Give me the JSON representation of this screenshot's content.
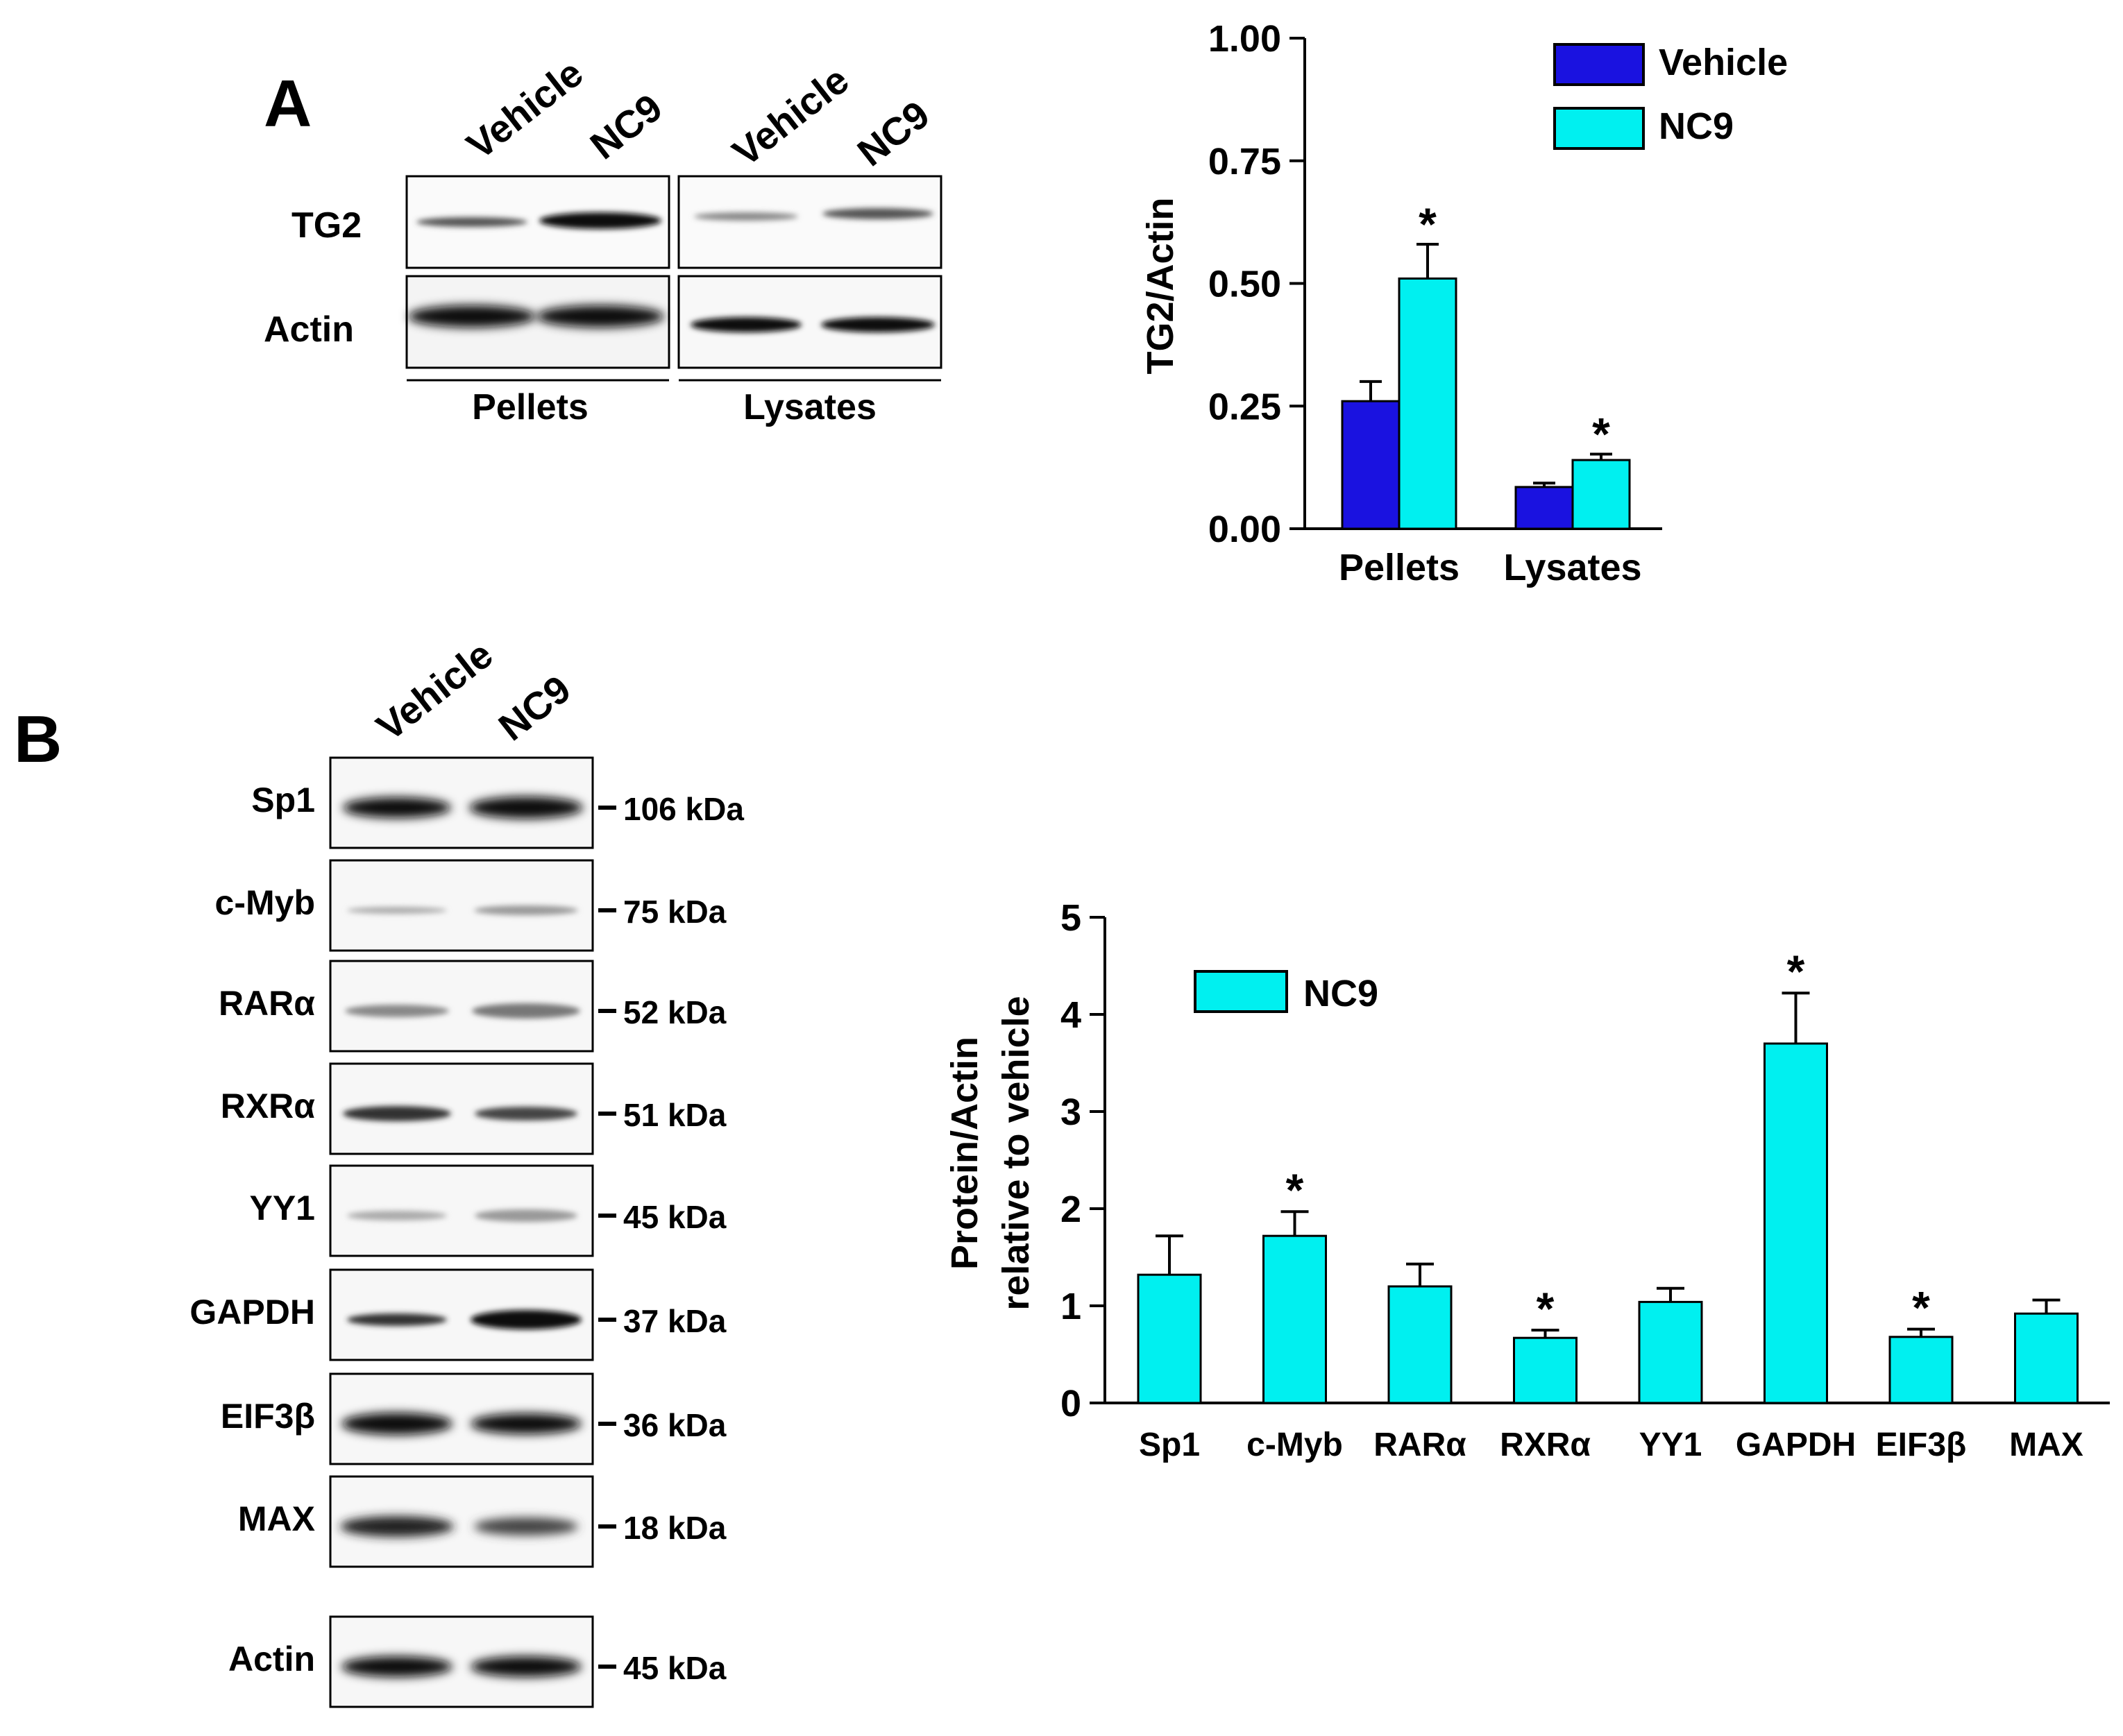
{
  "panel_a": {
    "letter": "A",
    "blot": {
      "lane_labels": [
        "Vehicle",
        "NC9",
        "Vehicle",
        "NC9"
      ],
      "row_labels": [
        "TG2",
        "Actin"
      ],
      "group_labels": [
        "Pellets",
        "Lysates"
      ]
    }
  },
  "panel_b": {
    "letter": "B",
    "blot": {
      "lane_labels": [
        "Vehicle",
        "NC9"
      ],
      "rows": [
        {
          "label": "Sp1",
          "kda": "106 kDa"
        },
        {
          "label": "c-Myb",
          "kda": "75 kDa"
        },
        {
          "label": "RARα",
          "kda": "52 kDa"
        },
        {
          "label": "RXRα",
          "kda": "51 kDa"
        },
        {
          "label": "YY1",
          "kda": "45 kDa"
        },
        {
          "label": "GAPDH",
          "kda": "37 kDa"
        },
        {
          "label": "EIF3β",
          "kda": "36 kDa"
        },
        {
          "label": "MAX",
          "kda": "18 kDa"
        },
        {
          "label": "Actin",
          "kda": "45 kDa"
        }
      ]
    }
  },
  "colors": {
    "vehicle": "#1a12e0",
    "nc9": "#00f0f0",
    "star": "#0a6f70"
  },
  "chart_data": [
    {
      "type": "bar",
      "categories": [
        "Pellets",
        "Lysates"
      ],
      "series": [
        {
          "name": "Vehicle",
          "values": [
            0.26,
            0.085
          ],
          "errors": [
            0.04,
            0.008
          ],
          "significant": [
            false,
            false
          ]
        },
        {
          "name": "NC9",
          "values": [
            0.51,
            0.14
          ],
          "errors": [
            0.07,
            0.012
          ],
          "significant": [
            true,
            true
          ]
        }
      ],
      "ylabel": "TG2/Actin",
      "ylim": [
        0,
        1.0
      ],
      "yticks": [
        "0.00",
        "0.25",
        "0.50",
        "0.75",
        "1.00"
      ],
      "legend": "top-right",
      "significance_marker": "*"
    },
    {
      "type": "bar",
      "categories": [
        "Sp1",
        "c-Myb",
        "RARα",
        "RXRα",
        "YY1",
        "GAPDH",
        "EIF3β",
        "MAX"
      ],
      "series": [
        {
          "name": "NC9",
          "values": [
            1.32,
            1.72,
            1.2,
            0.67,
            1.04,
            3.7,
            0.68,
            0.92
          ],
          "errors": [
            0.4,
            0.25,
            0.23,
            0.08,
            0.14,
            0.52,
            0.08,
            0.14
          ],
          "significant": [
            false,
            true,
            false,
            true,
            false,
            true,
            true,
            false
          ]
        }
      ],
      "ylabel_lines": [
        "Protein/Actin",
        "relative to vehicle"
      ],
      "ylim": [
        0,
        5
      ],
      "yticks": [
        "0",
        "1",
        "2",
        "3",
        "4",
        "5"
      ],
      "legend": "top-left",
      "significance_marker": "*"
    }
  ]
}
